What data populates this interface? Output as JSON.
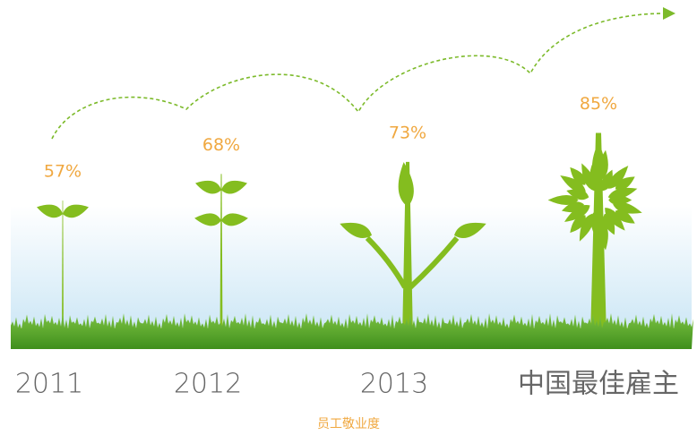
{
  "chart_data": {
    "type": "pictograph",
    "categories": [
      "2011",
      "2012",
      "2013",
      "中国最佳雇主"
    ],
    "values": [
      57,
      68,
      73,
      85
    ],
    "value_labels": [
      "57%",
      "68%",
      "73%",
      "85%"
    ],
    "x_label": "员工敬业度",
    "color": "#84bd1f"
  }
}
